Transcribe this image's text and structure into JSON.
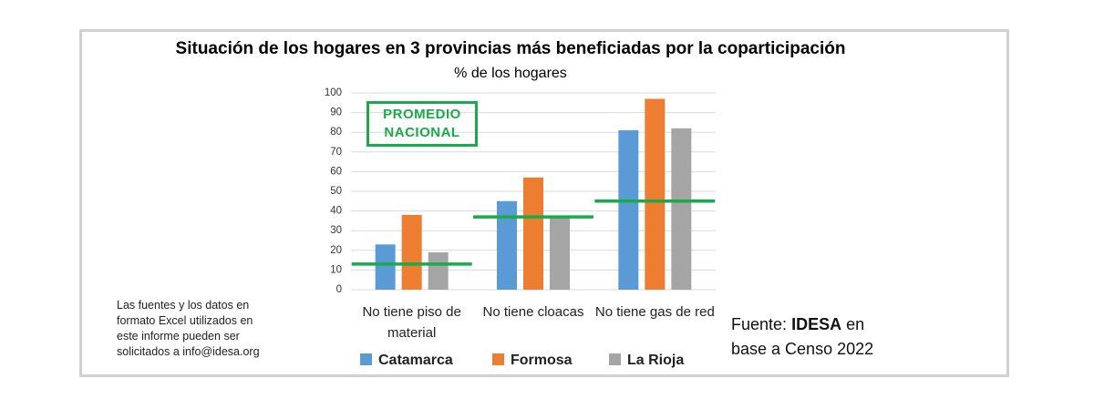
{
  "chart_data": {
    "type": "bar",
    "title": "Situación de los hogares en 3 provincias más beneficiadas por la coparticipación",
    "subtitle": "% de los hogares",
    "categories": [
      "No tiene piso de material",
      "No tiene cloacas",
      "No tiene gas de red"
    ],
    "series": [
      {
        "name": "Catamarca",
        "color": "#5b9bd5",
        "values": [
          23,
          45,
          81
        ]
      },
      {
        "name": "Formosa",
        "color": "#ed7d31",
        "values": [
          38,
          57,
          97
        ]
      },
      {
        "name": "La Rioja",
        "color": "#a5a5a5",
        "values": [
          19,
          37,
          82
        ]
      }
    ],
    "average": {
      "name": "PROMEDIO NACIONAL",
      "color": "#1aaa4a",
      "values": [
        13,
        37,
        45
      ]
    },
    "ylim": [
      0,
      100
    ],
    "yticks": [
      0,
      10,
      20,
      30,
      40,
      50,
      60,
      70,
      80,
      90,
      100
    ],
    "grid": true,
    "note": "Las fuentes y los datos en formato Excel utilizados en este informe pueden ser solicitados a info@idesa.org",
    "source": {
      "prefix": "Fuente:",
      "bold": "IDESA",
      "suffix": "en base a Censo 2022"
    }
  }
}
